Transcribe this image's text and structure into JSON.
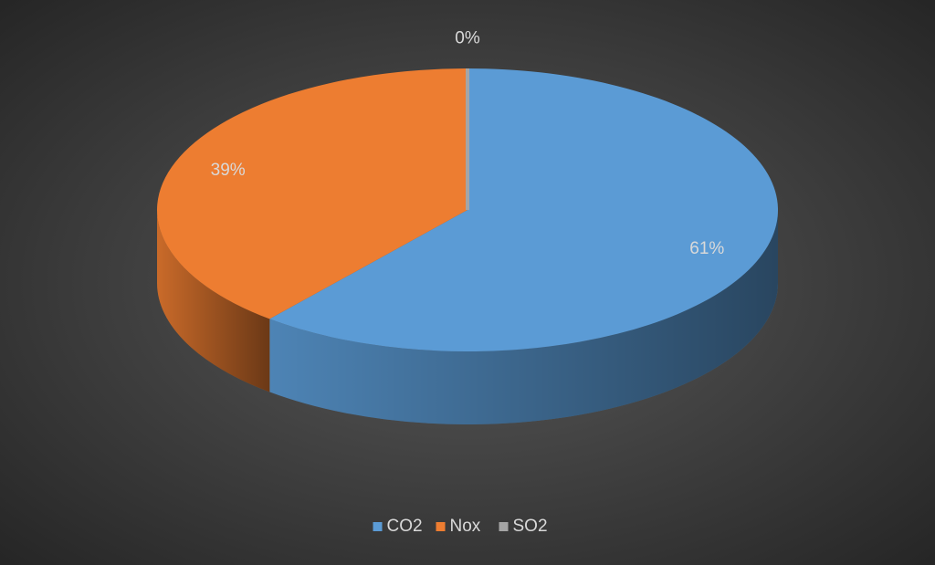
{
  "chart_data": {
    "type": "pie",
    "categories": [
      "CO2",
      "Nox",
      "SO2"
    ],
    "values": [
      61,
      39,
      0
    ],
    "value_labels": [
      "61%",
      "39%",
      "0%"
    ],
    "colors": [
      "#5b9bd5",
      "#ed7d31",
      "#a5a5a5"
    ],
    "legend": "bottom"
  }
}
